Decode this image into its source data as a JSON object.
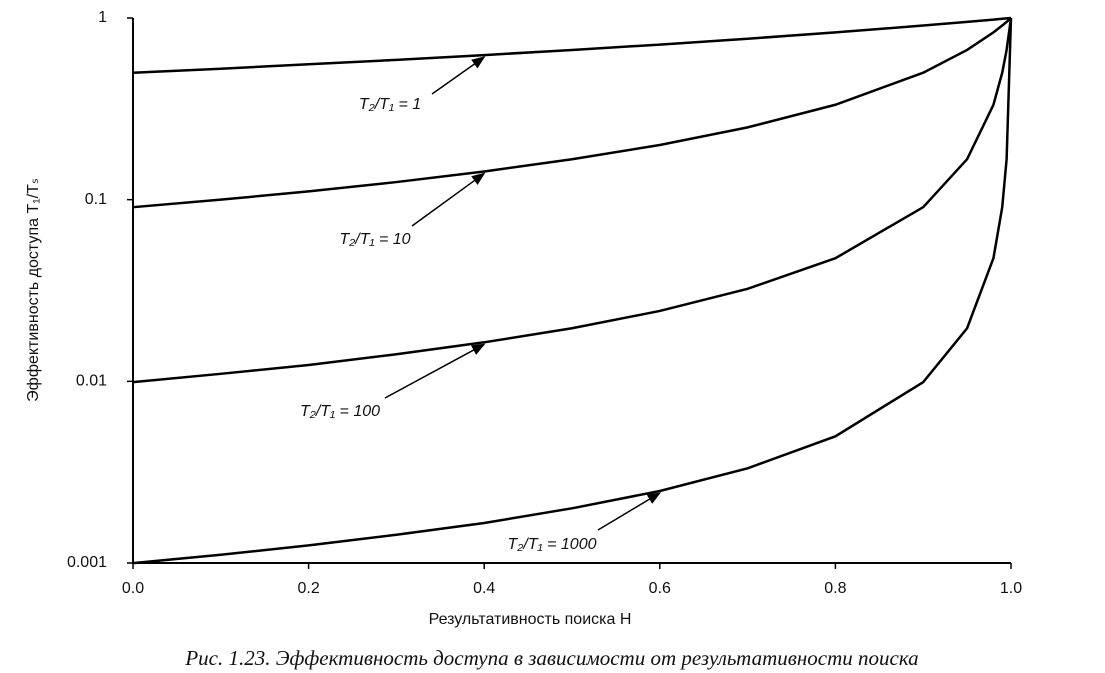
{
  "chart_data": {
    "type": "line",
    "caption": "Рис. 1.23. Эффективность доступа в зависимости от результативности поиска",
    "x_label": "Результативность поиска H",
    "y_label": "Эффективность доступа T₁/Tₛ",
    "x": [
      0,
      0.1,
      0.2,
      0.3,
      0.4,
      0.5,
      0.6,
      0.7,
      0.8,
      0.9,
      0.95,
      0.98,
      0.99,
      0.995,
      1.0
    ],
    "series": [
      {
        "name": "T₂/T₁ = 1",
        "color": "#000000",
        "values": [
          0.5,
          0.526,
          0.556,
          0.588,
          0.625,
          0.667,
          0.714,
          0.769,
          0.833,
          0.909,
          0.952,
          0.98,
          0.99,
          0.995,
          1
        ]
      },
      {
        "name": "T₂/T₁ = 10",
        "color": "#000000",
        "values": [
          0.0909,
          0.1,
          0.111,
          0.125,
          0.143,
          0.167,
          0.2,
          0.25,
          0.333,
          0.5,
          0.667,
          0.833,
          0.909,
          0.952,
          1
        ]
      },
      {
        "name": "T₂/T₁ = 100",
        "color": "#000000",
        "values": [
          0.0099,
          0.011,
          0.0123,
          0.0141,
          0.0164,
          0.0196,
          0.0244,
          0.0323,
          0.0476,
          0.0909,
          0.167,
          0.333,
          0.5,
          0.667,
          1
        ]
      },
      {
        "name": "T₂/T₁ = 1000",
        "color": "#000000",
        "values": [
          0.000999,
          0.00111,
          0.00125,
          0.00143,
          0.00166,
          0.002,
          0.00249,
          0.00332,
          0.00498,
          0.0099,
          0.0196,
          0.0476,
          0.0909,
          0.167,
          1
        ]
      }
    ],
    "xlim": [
      0,
      1
    ],
    "xticks": [
      {
        "value": 0,
        "label": "0.0"
      },
      {
        "value": 0.2,
        "label": "0.2"
      },
      {
        "value": 0.4,
        "label": "0.4"
      },
      {
        "value": 0.6,
        "label": "0.6"
      },
      {
        "value": 0.8,
        "label": "0.8"
      },
      {
        "value": 1,
        "label": "1.0"
      }
    ],
    "ylim": [
      0.001,
      1
    ],
    "yticks": [
      0.001,
      0.01,
      0.1,
      1
    ],
    "log_y": true,
    "grid": false
  }
}
